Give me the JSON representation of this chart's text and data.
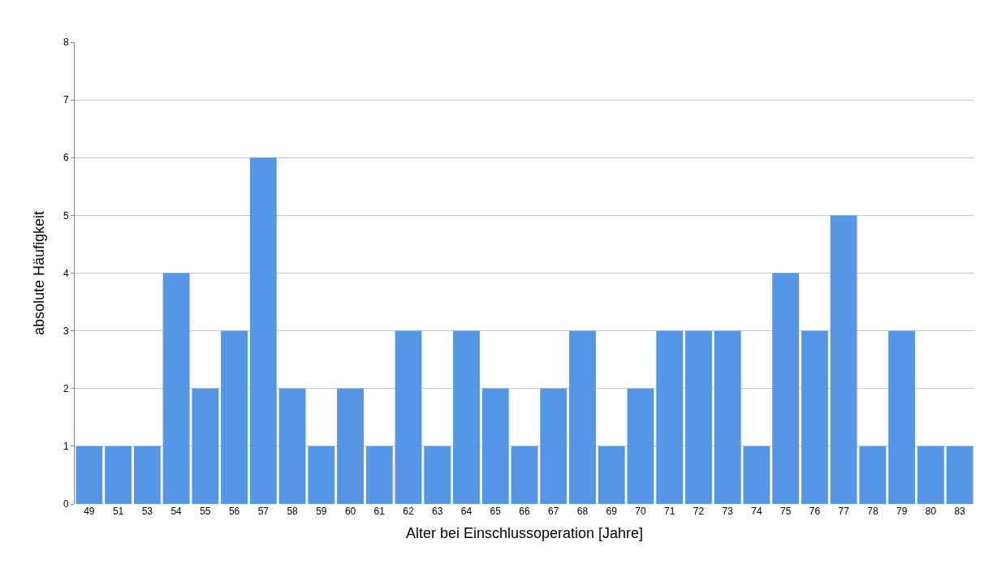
{
  "chart_data": {
    "type": "bar",
    "xlabel": "Alter bei Einschlussoperation [Jahre]",
    "ylabel": "absolute Häufigkeit",
    "categories": [
      "49",
      "51",
      "53",
      "54",
      "55",
      "56",
      "57",
      "58",
      "59",
      "60",
      "61",
      "62",
      "63",
      "64",
      "65",
      "66",
      "67",
      "68",
      "69",
      "70",
      "71",
      "72",
      "73",
      "74",
      "75",
      "76",
      "77",
      "78",
      "79",
      "80",
      "83"
    ],
    "values": [
      1,
      1,
      1,
      4,
      2,
      3,
      6,
      2,
      1,
      2,
      1,
      3,
      1,
      3,
      2,
      1,
      2,
      3,
      1,
      2,
      3,
      3,
      3,
      1,
      4,
      3,
      5,
      1,
      3,
      1,
      1
    ],
    "color": "#5596e6",
    "ylim": [
      0,
      8
    ],
    "yticks": [
      0,
      1,
      2,
      3,
      4,
      5,
      6,
      7,
      8
    ],
    "grid": "y"
  }
}
